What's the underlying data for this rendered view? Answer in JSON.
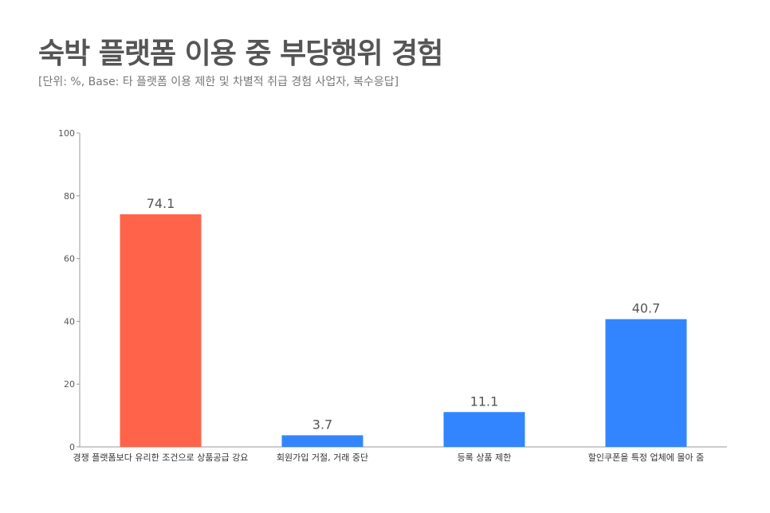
{
  "title": "숙박 플랫폼 이용 중 부당행위 경험",
  "subtitle": "[단위: %, Base: 타 플랫폼 이용 제한 및 차별적 취급 경험 사업자, 복수응답]",
  "colors": {
    "highlight": "#FF634A",
    "default": "#3385FF",
    "axis": "#9A9A9A",
    "text": "#555555"
  },
  "chart_data": {
    "type": "bar",
    "title": "숙박 플랫폼 이용 중 부당행위 경험",
    "subtitle": "[단위: %, Base: 타 플랫폼 이용 제한 및 차별적 취급 경험 사업자, 복수응답]",
    "categories": [
      "경쟁 플랫폼보다 유리한 조건으로 상품공급 강요",
      "회원가입 거절, 거래 중단",
      "등록 상품 제한",
      "할인쿠폰을 특정 업체에 몰아 줌"
    ],
    "values": [
      74.1,
      3.7,
      11.1,
      40.7
    ],
    "value_labels": [
      "74.1",
      "3.7",
      "11.1",
      "40.7"
    ],
    "bar_colors": [
      "#FF634A",
      "#3385FF",
      "#3385FF",
      "#3385FF"
    ],
    "ylim": [
      0,
      100
    ],
    "yticks": [
      0,
      20,
      40,
      60,
      80,
      100
    ],
    "xlabel": "",
    "ylabel": "",
    "grid": false,
    "legend": false
  }
}
